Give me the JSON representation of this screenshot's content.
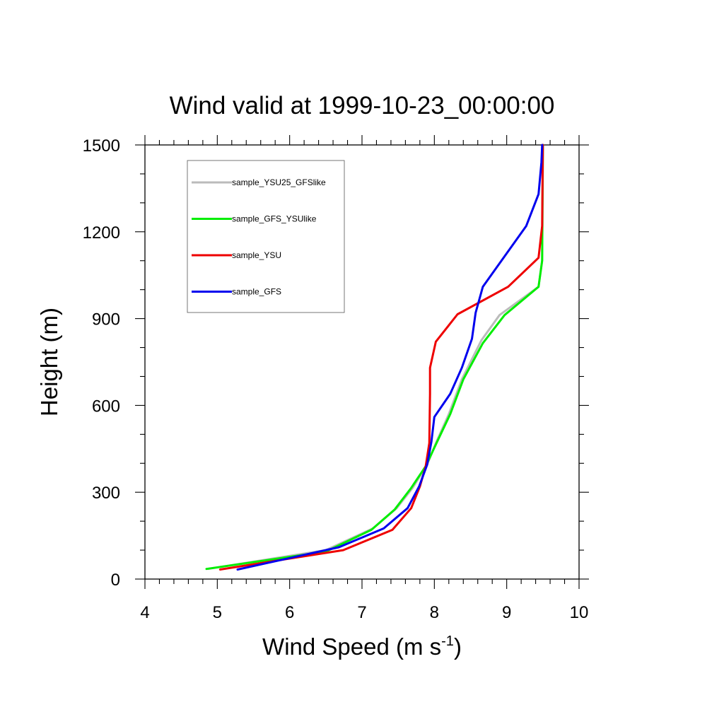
{
  "chart_data": {
    "type": "line",
    "title": "Wind valid at 1999-10-23_00:00:00",
    "xlabel": "Wind Speed (m s",
    "xlabel_sup": "-1",
    "xlabel_end": ")",
    "ylabel": "Height (m)",
    "xlim": [
      4,
      10
    ],
    "ylim": [
      0,
      1500
    ],
    "xticks": [
      "4",
      "5",
      "6",
      "7",
      "8",
      "9",
      "10"
    ],
    "yticks": [
      "0",
      "300",
      "600",
      "900",
      "1200",
      "1500"
    ],
    "legend_position": "top-left",
    "series": [
      {
        "name": "sample_YSU25_GFSlike",
        "color": "#bbbbbb",
        "points": [
          [
            4.87,
            35
          ],
          [
            6.5,
            100
          ],
          [
            7.15,
            175
          ],
          [
            7.48,
            245
          ],
          [
            7.7,
            315
          ],
          [
            7.9,
            395
          ],
          [
            8.03,
            475
          ],
          [
            8.2,
            570
          ],
          [
            8.38,
            690
          ],
          [
            8.65,
            825
          ],
          [
            8.9,
            912
          ],
          [
            9.44,
            1010
          ],
          [
            9.49,
            1100
          ],
          [
            9.5,
            1500
          ]
        ]
      },
      {
        "name": "sample_GFS_YSUlike",
        "color": "#00ee00",
        "points": [
          [
            4.85,
            35
          ],
          [
            6.5,
            95
          ],
          [
            7.13,
            170
          ],
          [
            7.45,
            240
          ],
          [
            7.68,
            315
          ],
          [
            7.88,
            390
          ],
          [
            8.03,
            470
          ],
          [
            8.22,
            570
          ],
          [
            8.4,
            690
          ],
          [
            8.67,
            815
          ],
          [
            8.97,
            912
          ],
          [
            9.44,
            1010
          ],
          [
            9.49,
            1100
          ],
          [
            9.5,
            1500
          ]
        ]
      },
      {
        "name": "sample_YSU",
        "color": "#ee0000",
        "points": [
          [
            5.04,
            33
          ],
          [
            6.74,
            100
          ],
          [
            7.42,
            170
          ],
          [
            7.68,
            245
          ],
          [
            7.8,
            320
          ],
          [
            7.88,
            390
          ],
          [
            7.93,
            470
          ],
          [
            7.94,
            640
          ],
          [
            7.94,
            730
          ],
          [
            8.02,
            820
          ],
          [
            8.32,
            915
          ],
          [
            9.02,
            1010
          ],
          [
            9.44,
            1110
          ],
          [
            9.49,
            1220
          ],
          [
            9.5,
            1500
          ]
        ]
      },
      {
        "name": "sample_GFS",
        "color": "#0000ee",
        "points": [
          [
            5.28,
            33
          ],
          [
            6.68,
            110
          ],
          [
            7.3,
            175
          ],
          [
            7.63,
            245
          ],
          [
            7.79,
            320
          ],
          [
            7.9,
            395
          ],
          [
            7.96,
            475
          ],
          [
            8.0,
            560
          ],
          [
            8.22,
            640
          ],
          [
            8.38,
            730
          ],
          [
            8.52,
            830
          ],
          [
            8.57,
            920
          ],
          [
            8.67,
            1010
          ],
          [
            9.27,
            1220
          ],
          [
            9.44,
            1330
          ],
          [
            9.48,
            1440
          ],
          [
            9.49,
            1500
          ]
        ]
      }
    ]
  }
}
